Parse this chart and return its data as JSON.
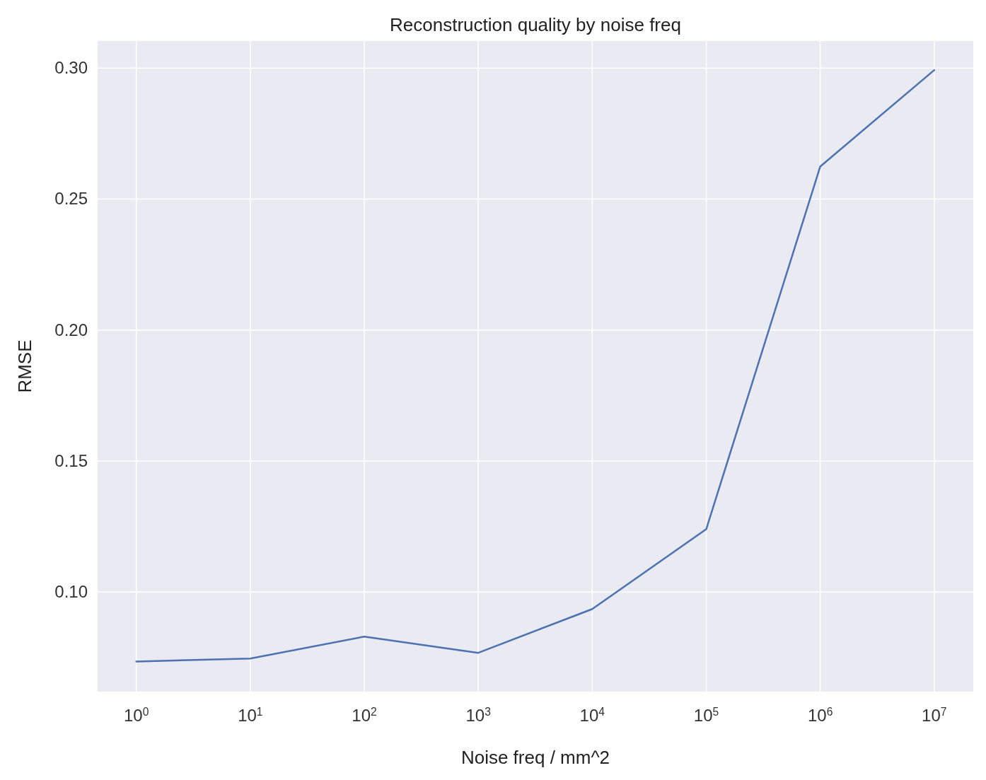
{
  "chart_data": {
    "type": "line",
    "title": "Reconstruction quality by noise freq",
    "xlabel": "Noise freq / mm^2",
    "ylabel": "RMSE",
    "x": [
      1,
      10,
      100,
      1000,
      10000,
      100000,
      1000000,
      10000000
    ],
    "series": [
      {
        "color": "#4c72b0",
        "values": [
          0.0735,
          0.0746,
          0.083,
          0.0768,
          0.0935,
          0.124,
          0.2624,
          0.2992
        ]
      }
    ],
    "log": "x",
    "xlim": [
      0.458,
      22000000
    ],
    "ylim": [
      0.062,
      0.3103
    ],
    "xticks": [
      {
        "value": 1,
        "label": "10$^{0}$"
      },
      {
        "value": 10,
        "label": "10$^{1}$"
      },
      {
        "value": 100,
        "label": "10$^{2}$"
      },
      {
        "value": 1000,
        "label": "10$^{3}$"
      },
      {
        "value": 10000,
        "label": "10$^{4}$"
      },
      {
        "value": 100000,
        "label": "10$^{5}$"
      },
      {
        "value": 1000000,
        "label": "10$^{6}$"
      },
      {
        "value": 10000000,
        "label": "10$^{7}$"
      }
    ],
    "yticks": [
      {
        "value": 0.1,
        "label": "0.10"
      },
      {
        "value": 0.15,
        "label": "0.15"
      },
      {
        "value": 0.2,
        "label": "0.20"
      },
      {
        "value": 0.25,
        "label": "0.25"
      },
      {
        "value": 0.3,
        "label": "0.30"
      }
    ],
    "grid": true
  }
}
